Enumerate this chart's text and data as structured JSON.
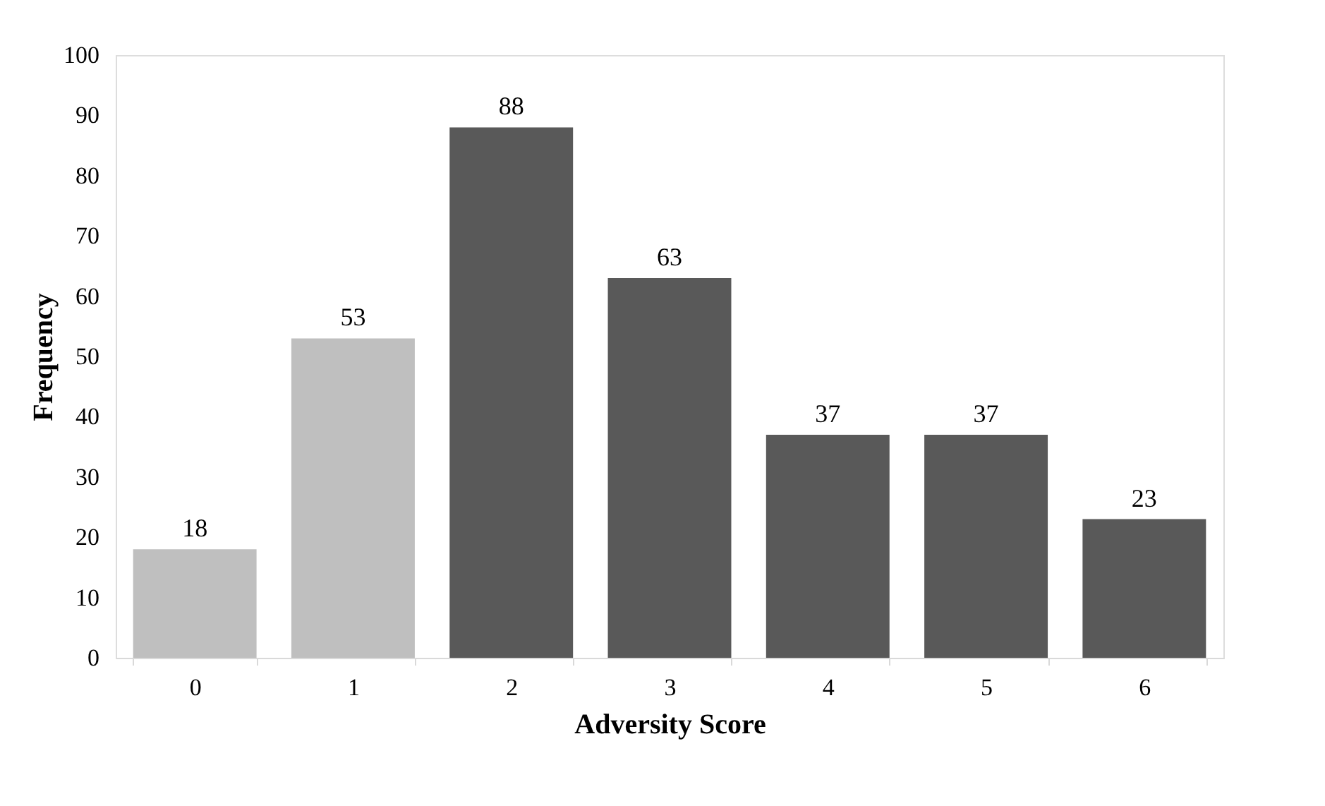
{
  "chart_data": {
    "type": "bar",
    "xlabel": "Adversity Score",
    "ylabel": "Frequency",
    "categories": [
      "0",
      "1",
      "2",
      "3",
      "4",
      "5",
      "6"
    ],
    "values": [
      18,
      53,
      88,
      63,
      37,
      37,
      23
    ],
    "colors": [
      "#bfbfbf",
      "#bfbfbf",
      "#595959",
      "#595959",
      "#595959",
      "#595959",
      "#595959"
    ],
    "ylim": [
      0,
      100
    ],
    "yticks": [
      0,
      10,
      20,
      30,
      40,
      50,
      60,
      70,
      80,
      90,
      100
    ],
    "grid": false,
    "data_labels": true
  }
}
